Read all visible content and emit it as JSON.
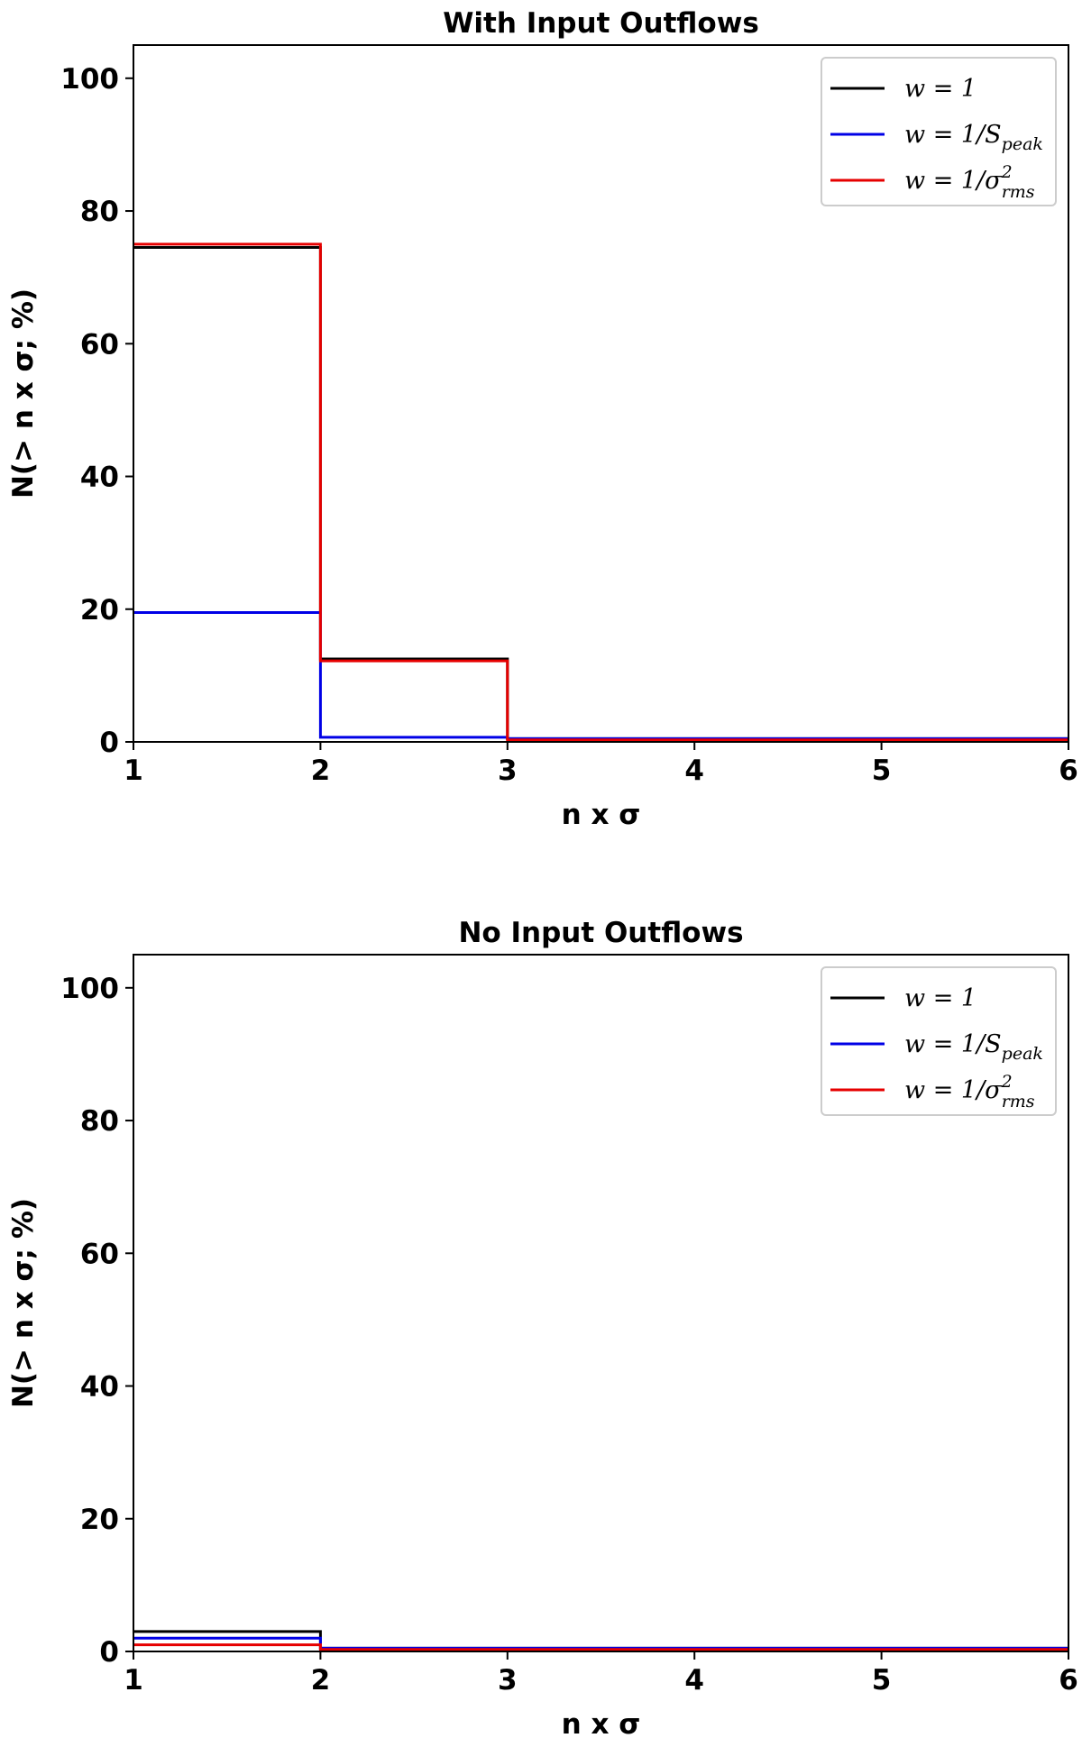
{
  "colors": {
    "w1": "#000000",
    "wspeak": "#0000e6",
    "wrms": "#e60000"
  },
  "legend_labels": [
    "w = 1",
    "w = 1/S",
    "w = 1/σ"
  ],
  "legend_subscripts": [
    "",
    "peak",
    "rms"
  ],
  "legend_superscripts": [
    "",
    "",
    "2"
  ],
  "chart_data": [
    {
      "type": "line",
      "step": "post",
      "title": "With Input Outflows",
      "xlabel": "n x σ",
      "ylabel": "N(> n x σ; %)",
      "xlim": [
        1,
        6
      ],
      "ylim": [
        0,
        105
      ],
      "xticks": [
        "1",
        "2",
        "3",
        "4",
        "5",
        "6"
      ],
      "yticks": [
        "0",
        "20",
        "40",
        "60",
        "80",
        "100"
      ],
      "legend": "top-right",
      "x": [
        1,
        2,
        3,
        4,
        5,
        6
      ],
      "series": [
        {
          "name": "w = 1",
          "color": "#000000",
          "values": [
            74.5,
            12.5,
            0.5,
            0.5,
            0.5,
            0.5
          ]
        },
        {
          "name": "w = 1/S_peak",
          "color": "#0000e6",
          "values": [
            19.5,
            0.7,
            0.5,
            0.5,
            0.5,
            0.5
          ]
        },
        {
          "name": "w = 1/σ²_rms",
          "color": "#e60000",
          "values": [
            75,
            12.2,
            0.3,
            0.3,
            0.3,
            0.3
          ]
        }
      ]
    },
    {
      "type": "line",
      "step": "post",
      "title": "No Input Outflows",
      "xlabel": "n x σ",
      "ylabel": "N(> n x σ; %)",
      "xlim": [
        1,
        6
      ],
      "ylim": [
        0,
        105
      ],
      "xticks": [
        "1",
        "2",
        "3",
        "4",
        "5",
        "6"
      ],
      "yticks": [
        "0",
        "20",
        "40",
        "60",
        "80",
        "100"
      ],
      "legend": "top-right",
      "x": [
        1,
        2,
        3,
        4,
        5,
        6
      ],
      "series": [
        {
          "name": "w = 1",
          "color": "#000000",
          "values": [
            3,
            0.5,
            0.5,
            0.5,
            0.5,
            0.5
          ]
        },
        {
          "name": "w = 1/S_peak",
          "color": "#0000e6",
          "values": [
            2,
            0.5,
            0.5,
            0.5,
            0.5,
            0.5
          ]
        },
        {
          "name": "w = 1/σ²_rms",
          "color": "#e60000",
          "values": [
            1,
            0.3,
            0.3,
            0.3,
            0.3,
            0.3
          ]
        }
      ]
    }
  ]
}
